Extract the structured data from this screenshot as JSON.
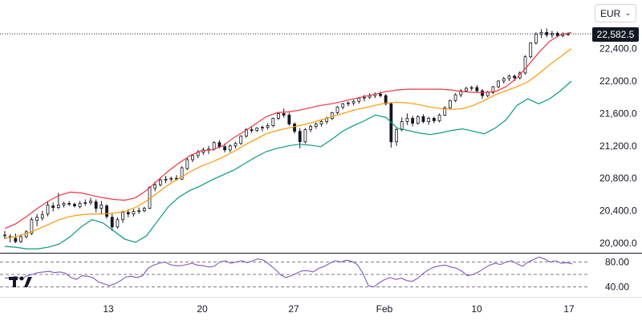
{
  "currency_select": {
    "value": "EUR",
    "icon": "chevron-down-icon"
  },
  "last_price_label": "22,582.5",
  "logo": {
    "name": "tradingview-logo",
    "text": "TV"
  },
  "colors": {
    "upper_band": "#f23645",
    "middle_band": "#ff9800",
    "lower_band": "#089981",
    "rsi": "#7e57c2",
    "candle": "#131722",
    "grid_dash": "#787b86"
  },
  "chart_data": [
    {
      "type": "candlestick",
      "title": "",
      "x_ticks": [
        "13",
        "20",
        "27",
        "Feb",
        "10",
        "17"
      ],
      "y_ticks": [
        "22,400.0",
        "22,000.0",
        "21,600.0",
        "21,200.0",
        "20,800.0",
        "20,400.0",
        "20,000.0"
      ],
      "ylim": [
        20000,
        22600
      ],
      "last_price": 22582.5,
      "series": [
        {
          "name": "",
          "kind": "ohlc",
          "values": [
            [
              20090,
              20150,
              20050,
              20100
            ],
            [
              20080,
              20110,
              20010,
              20070
            ],
            [
              20060,
              20120,
              20000,
              20020
            ],
            [
              20020,
              20110,
              20000,
              20080
            ],
            [
              20080,
              20160,
              20060,
              20140
            ],
            [
              20120,
              20320,
              20100,
              20290
            ],
            [
              20280,
              20360,
              20210,
              20320
            ],
            [
              20310,
              20400,
              20280,
              20350
            ],
            [
              20360,
              20520,
              20330,
              20470
            ],
            [
              20460,
              20500,
              20390,
              20440
            ],
            [
              20440,
              20620,
              20420,
              20470
            ],
            [
              20470,
              20510,
              20440,
              20490
            ],
            [
              20490,
              20520,
              20460,
              20480
            ],
            [
              20480,
              20500,
              20440,
              20460
            ],
            [
              20450,
              20520,
              20430,
              20490
            ],
            [
              20490,
              20540,
              20460,
              20500
            ],
            [
              20500,
              20560,
              20470,
              20520
            ],
            [
              20510,
              20540,
              20380,
              20430
            ],
            [
              20430,
              20520,
              20360,
              20470
            ],
            [
              20460,
              20480,
              20300,
              20330
            ],
            [
              20320,
              20360,
              20150,
              20200
            ],
            [
              20200,
              20320,
              20180,
              20290
            ],
            [
              20290,
              20400,
              20250,
              20380
            ],
            [
              20380,
              20420,
              20320,
              20360
            ],
            [
              20360,
              20420,
              20330,
              20390
            ],
            [
              20390,
              20440,
              20360,
              20400
            ],
            [
              20400,
              20450,
              20380,
              20430
            ],
            [
              20430,
              20700,
              20420,
              20690
            ],
            [
              20680,
              20760,
              20640,
              20720
            ],
            [
              20720,
              20800,
              20700,
              20780
            ],
            [
              20780,
              20830,
              20740,
              20790
            ],
            [
              20790,
              20820,
              20760,
              20800
            ],
            [
              20800,
              20840,
              20770,
              20790
            ],
            [
              20790,
              20950,
              20780,
              20930
            ],
            [
              20920,
              21050,
              20900,
              21030
            ],
            [
              21030,
              21100,
              21000,
              21080
            ],
            [
              21080,
              21150,
              21050,
              21120
            ],
            [
              21120,
              21180,
              21090,
              21150
            ],
            [
              21150,
              21200,
              21100,
              21160
            ],
            [
              21160,
              21260,
              21140,
              21240
            ],
            [
              21240,
              21270,
              21170,
              21190
            ],
            [
              21190,
              21230,
              21120,
              21150
            ],
            [
              21150,
              21220,
              21120,
              21200
            ],
            [
              21200,
              21250,
              21170,
              21230
            ],
            [
              21230,
              21330,
              21210,
              21320
            ],
            [
              21320,
              21420,
              21300,
              21400
            ],
            [
              21400,
              21440,
              21360,
              21390
            ],
            [
              21390,
              21430,
              21370,
              21420
            ],
            [
              21420,
              21450,
              21380,
              21430
            ],
            [
              21430,
              21480,
              21400,
              21450
            ],
            [
              21450,
              21550,
              21430,
              21540
            ],
            [
              21540,
              21620,
              21520,
              21600
            ],
            [
              21600,
              21660,
              21550,
              21580
            ],
            [
              21580,
              21610,
              21450,
              21470
            ],
            [
              21470,
              21490,
              21350,
              21380
            ],
            [
              21380,
              21420,
              21170,
              21250
            ],
            [
              21250,
              21420,
              21230,
              21400
            ],
            [
              21400,
              21460,
              21370,
              21440
            ],
            [
              21440,
              21490,
              21410,
              21470
            ],
            [
              21470,
              21520,
              21440,
              21500
            ],
            [
              21500,
              21560,
              21470,
              21540
            ],
            [
              21540,
              21620,
              21520,
              21610
            ],
            [
              21610,
              21690,
              21590,
              21680
            ],
            [
              21680,
              21730,
              21650,
              21720
            ],
            [
              21720,
              21750,
              21690,
              21730
            ],
            [
              21730,
              21770,
              21700,
              21750
            ],
            [
              21750,
              21800,
              21720,
              21790
            ],
            [
              21790,
              21830,
              21750,
              21800
            ],
            [
              21800,
              21850,
              21780,
              21820
            ],
            [
              21820,
              21860,
              21790,
              21840
            ],
            [
              21840,
              21870,
              21800,
              21820
            ],
            [
              21820,
              21840,
              21700,
              21720
            ],
            [
              21720,
              21740,
              21180,
              21250
            ],
            [
              21250,
              21420,
              21200,
              21400
            ],
            [
              21400,
              21550,
              21380,
              21500
            ],
            [
              21500,
              21600,
              21460,
              21540
            ],
            [
              21540,
              21570,
              21440,
              21480
            ],
            [
              21480,
              21580,
              21460,
              21560
            ],
            [
              21560,
              21590,
              21480,
              21500
            ],
            [
              21500,
              21560,
              21460,
              21540
            ],
            [
              21540,
              21560,
              21480,
              21510
            ],
            [
              21510,
              21600,
              21490,
              21580
            ],
            [
              21580,
              21690,
              21570,
              21670
            ],
            [
              21670,
              21770,
              21650,
              21760
            ],
            [
              21760,
              21850,
              21740,
              21830
            ],
            [
              21830,
              21900,
              21800,
              21880
            ],
            [
              21880,
              21930,
              21860,
              21910
            ],
            [
              21910,
              21940,
              21880,
              21920
            ],
            [
              21920,
              21950,
              21860,
              21880
            ],
            [
              21880,
              21900,
              21780,
              21820
            ],
            [
              21820,
              21880,
              21800,
              21860
            ],
            [
              21860,
              21940,
              21840,
              21930
            ],
            [
              21930,
              22010,
              21910,
              22000
            ],
            [
              22000,
              22050,
              21970,
              22030
            ],
            [
              22030,
              22080,
              22000,
              22060
            ],
            [
              22060,
              22080,
              22000,
              22040
            ],
            [
              22040,
              22120,
              22020,
              22100
            ],
            [
              22100,
              22320,
              22080,
              22300
            ],
            [
              22300,
              22480,
              22280,
              22470
            ],
            [
              22470,
              22600,
              22450,
              22580
            ],
            [
              22580,
              22640,
              22530,
              22600
            ],
            [
              22600,
              22650,
              22540,
              22570
            ],
            [
              22570,
              22620,
              22530,
              22590
            ],
            [
              22590,
              22610,
              22540,
              22560
            ],
            [
              22560,
              22600,
              22540,
              22580
            ],
            [
              22580,
              22600,
              22560,
              22582.5
            ]
          ]
        },
        {
          "name": "",
          "kind": "upper_band",
          "values": [
            20180,
            20240,
            20330,
            20430,
            20520,
            20590,
            20630,
            20620,
            20590,
            20560,
            20540,
            20530,
            20560,
            20650,
            20770,
            20890,
            20990,
            21080,
            21140,
            21150,
            21200,
            21300,
            21380,
            21470,
            21560,
            21610,
            21620,
            21640,
            21670,
            21700,
            21720,
            21750,
            21780,
            21810,
            21840,
            21870,
            21890,
            21900,
            21900,
            21900,
            21900,
            21890,
            21870,
            21860,
            21860,
            21870,
            21930,
            22040,
            22190,
            22350,
            22490,
            22570,
            22600
          ]
        },
        {
          "name": "",
          "kind": "middle_band",
          "values": [
            20060,
            20080,
            20120,
            20170,
            20230,
            20290,
            20330,
            20350,
            20360,
            20360,
            20370,
            20390,
            20440,
            20520,
            20620,
            20720,
            20800,
            20880,
            20950,
            21000,
            21060,
            21130,
            21210,
            21280,
            21350,
            21390,
            21420,
            21450,
            21480,
            21520,
            21560,
            21600,
            21640,
            21670,
            21700,
            21730,
            21740,
            21730,
            21710,
            21680,
            21660,
            21650,
            21660,
            21700,
            21760,
            21830,
            21880,
            21930,
            21990,
            22090,
            22200,
            22300,
            22400
          ]
        },
        {
          "name": "",
          "kind": "lower_band",
          "values": [
            19960,
            19950,
            19930,
            19930,
            19950,
            19990,
            20080,
            20200,
            20290,
            20250,
            20150,
            20050,
            20010,
            20090,
            20270,
            20450,
            20570,
            20650,
            20710,
            20780,
            20840,
            20900,
            20980,
            21060,
            21130,
            21170,
            21200,
            21220,
            21210,
            21190,
            21280,
            21380,
            21450,
            21510,
            21580,
            21550,
            21420,
            21390,
            21360,
            21340,
            21360,
            21390,
            21410,
            21380,
            21350,
            21420,
            21520,
            21700,
            21780,
            21720,
            21780,
            21880,
            22000
          ]
        }
      ]
    },
    {
      "type": "line",
      "title": "",
      "y_ticks": [
        "80.00",
        "40.00"
      ],
      "ylim": [
        20,
        100
      ],
      "reference_lines": [
        80,
        60,
        40
      ],
      "series": [
        {
          "name": "",
          "values": [
            54,
            55,
            57,
            52,
            58,
            60,
            63,
            64,
            65,
            63,
            64,
            62,
            55,
            52,
            58,
            57,
            55,
            48,
            45,
            42,
            45,
            50,
            56,
            57,
            55,
            58,
            70,
            75,
            78,
            80,
            76,
            74,
            74,
            76,
            78,
            75,
            74,
            72,
            73,
            80,
            82,
            78,
            80,
            82,
            79,
            82,
            85,
            83,
            76,
            69,
            60,
            55,
            58,
            62,
            66,
            66,
            64,
            70,
            73,
            78,
            82,
            80,
            83,
            81,
            76,
            62,
            42,
            40,
            47,
            52,
            55,
            52,
            54,
            50,
            49,
            54,
            62,
            68,
            72,
            74,
            75,
            72,
            70,
            65,
            58,
            60,
            64,
            70,
            75,
            78,
            76,
            80,
            82,
            77,
            73,
            80,
            84,
            88,
            85,
            80,
            82,
            78,
            79,
            77
          ]
        }
      ]
    }
  ]
}
